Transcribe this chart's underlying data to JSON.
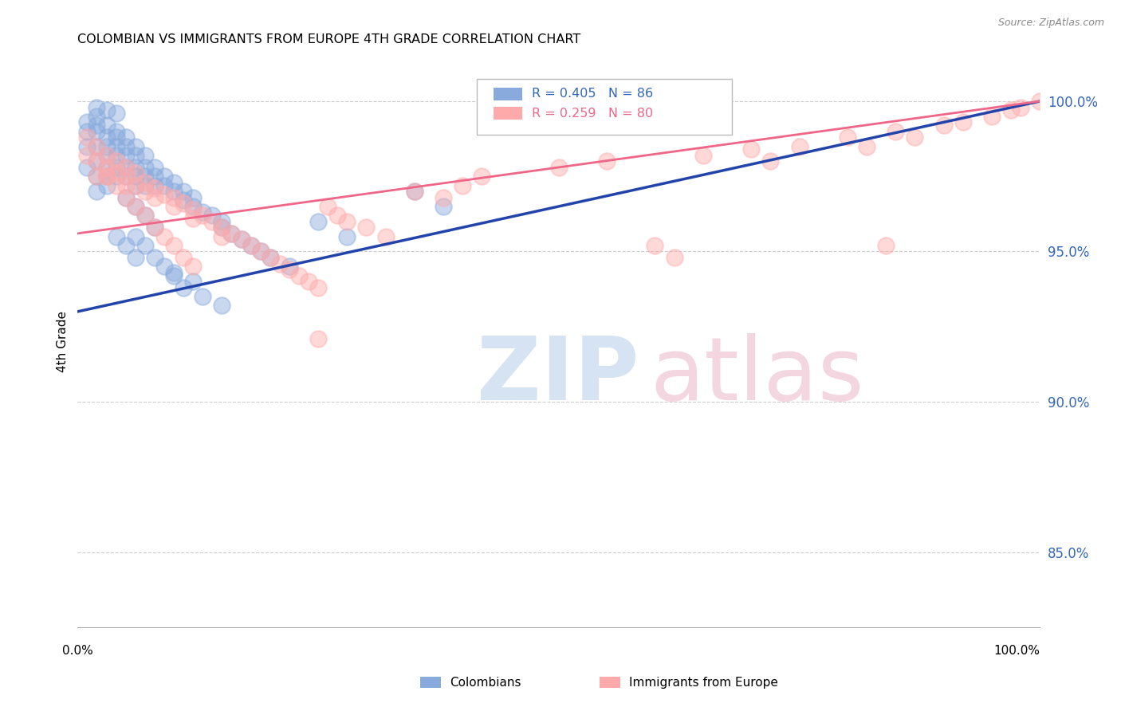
{
  "title": "COLOMBIAN VS IMMIGRANTS FROM EUROPE 4TH GRADE CORRELATION CHART",
  "source": "Source: ZipAtlas.com",
  "ylabel": "4th Grade",
  "ytick_labels": [
    "100.0%",
    "95.0%",
    "90.0%",
    "85.0%"
  ],
  "ytick_values": [
    1.0,
    0.95,
    0.9,
    0.85
  ],
  "xlim": [
    0.0,
    1.0
  ],
  "ylim": [
    0.825,
    1.015
  ],
  "color_blue": "#88AADD",
  "color_pink": "#FFAAAA",
  "line_blue": "#2244AA",
  "line_pink": "#EE6688",
  "colombians_x": [
    0.01,
    0.01,
    0.01,
    0.02,
    0.02,
    0.02,
    0.02,
    0.02,
    0.02,
    0.03,
    0.03,
    0.03,
    0.03,
    0.03,
    0.03,
    0.03,
    0.04,
    0.04,
    0.04,
    0.04,
    0.04,
    0.04,
    0.05,
    0.05,
    0.05,
    0.05,
    0.05,
    0.06,
    0.06,
    0.06,
    0.06,
    0.06,
    0.07,
    0.07,
    0.07,
    0.07,
    0.08,
    0.08,
    0.08,
    0.09,
    0.09,
    0.1,
    0.1,
    0.11,
    0.11,
    0.12,
    0.12,
    0.13,
    0.14,
    0.15,
    0.15,
    0.16,
    0.17,
    0.18,
    0.19,
    0.2,
    0.22,
    0.05,
    0.06,
    0.07,
    0.08,
    0.04,
    0.05,
    0.06,
    0.1,
    0.12,
    0.25,
    0.28,
    0.35,
    0.38,
    0.02,
    0.03,
    0.04,
    0.01,
    0.02,
    0.06,
    0.07,
    0.08,
    0.09,
    0.1,
    0.11,
    0.13,
    0.15
  ],
  "colombians_y": [
    0.99,
    0.985,
    0.978,
    0.995,
    0.99,
    0.985,
    0.98,
    0.975,
    0.97,
    0.992,
    0.988,
    0.985,
    0.982,
    0.978,
    0.975,
    0.972,
    0.99,
    0.988,
    0.985,
    0.982,
    0.978,
    0.975,
    0.988,
    0.985,
    0.982,
    0.978,
    0.975,
    0.985,
    0.982,
    0.978,
    0.975,
    0.972,
    0.982,
    0.978,
    0.975,
    0.972,
    0.978,
    0.975,
    0.972,
    0.975,
    0.972,
    0.973,
    0.97,
    0.97,
    0.967,
    0.968,
    0.965,
    0.963,
    0.962,
    0.96,
    0.958,
    0.956,
    0.954,
    0.952,
    0.95,
    0.948,
    0.945,
    0.968,
    0.965,
    0.962,
    0.958,
    0.955,
    0.952,
    0.948,
    0.943,
    0.94,
    0.96,
    0.955,
    0.97,
    0.965,
    0.998,
    0.997,
    0.996,
    0.993,
    0.992,
    0.955,
    0.952,
    0.948,
    0.945,
    0.942,
    0.938,
    0.935,
    0.932
  ],
  "europe_x": [
    0.01,
    0.01,
    0.02,
    0.02,
    0.02,
    0.03,
    0.03,
    0.03,
    0.04,
    0.04,
    0.05,
    0.05,
    0.05,
    0.06,
    0.06,
    0.07,
    0.07,
    0.08,
    0.08,
    0.09,
    0.1,
    0.1,
    0.11,
    0.12,
    0.12,
    0.13,
    0.14,
    0.15,
    0.15,
    0.16,
    0.17,
    0.18,
    0.19,
    0.2,
    0.21,
    0.22,
    0.23,
    0.24,
    0.25,
    0.26,
    0.27,
    0.28,
    0.3,
    0.32,
    0.35,
    0.38,
    0.4,
    0.42,
    0.5,
    0.55,
    0.6,
    0.62,
    0.65,
    0.7,
    0.72,
    0.75,
    0.8,
    0.82,
    0.85,
    0.87,
    0.9,
    0.92,
    0.95,
    0.97,
    0.98,
    1.0,
    0.25,
    0.84,
    0.03,
    0.04,
    0.05,
    0.06,
    0.07,
    0.08,
    0.09,
    0.1,
    0.11,
    0.12
  ],
  "europe_y": [
    0.988,
    0.982,
    0.985,
    0.98,
    0.975,
    0.982,
    0.978,
    0.975,
    0.98,
    0.976,
    0.978,
    0.975,
    0.972,
    0.976,
    0.972,
    0.973,
    0.97,
    0.971,
    0.968,
    0.969,
    0.968,
    0.965,
    0.966,
    0.964,
    0.961,
    0.962,
    0.96,
    0.958,
    0.955,
    0.956,
    0.954,
    0.952,
    0.95,
    0.948,
    0.946,
    0.944,
    0.942,
    0.94,
    0.938,
    0.965,
    0.962,
    0.96,
    0.958,
    0.955,
    0.97,
    0.968,
    0.972,
    0.975,
    0.978,
    0.98,
    0.952,
    0.948,
    0.982,
    0.984,
    0.98,
    0.985,
    0.988,
    0.985,
    0.99,
    0.988,
    0.992,
    0.993,
    0.995,
    0.997,
    0.998,
    1.0,
    0.921,
    0.952,
    0.975,
    0.972,
    0.968,
    0.965,
    0.962,
    0.958,
    0.955,
    0.952,
    0.948,
    0.945
  ]
}
